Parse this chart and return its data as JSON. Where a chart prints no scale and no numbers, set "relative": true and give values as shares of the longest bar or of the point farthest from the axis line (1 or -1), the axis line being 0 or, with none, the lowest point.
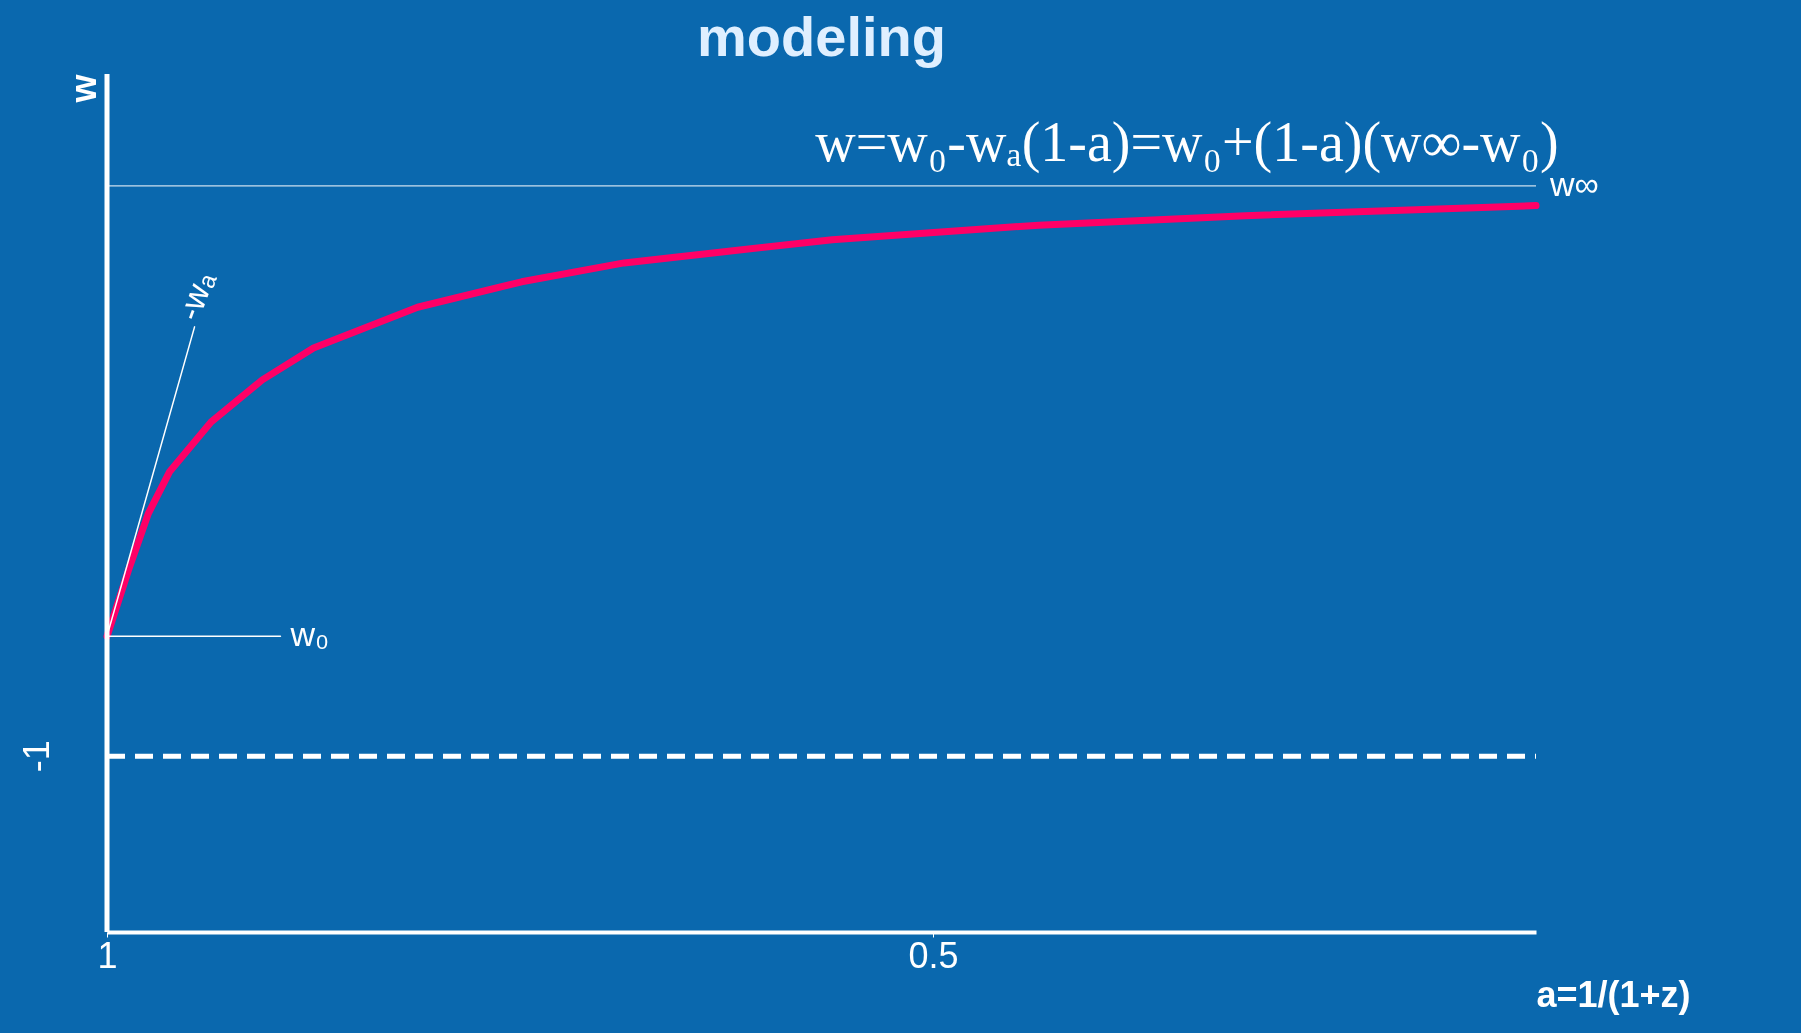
{
  "chart_data": {
    "type": "line",
    "title": "modeling",
    "xlabel": "a=1/(1+z)",
    "ylabel": "w",
    "relative": true,
    "xlim": [
      1,
      0.135
    ],
    "xticks": [
      1,
      0.5
    ],
    "series": [
      {
        "color": "#ff0066",
        "x": [
          1,
          0.987,
          0.975,
          0.962,
          0.937,
          0.906,
          0.875,
          0.812,
          0.749,
          0.687,
          0.561,
          0.436,
          0.311,
          0.135
        ],
        "values": [
          0.407,
          0.498,
          0.576,
          0.634,
          0.702,
          0.76,
          0.804,
          0.86,
          0.895,
          0.921,
          0.953,
          0.973,
          0.986,
          1
        ]
      },
      {
        "name": "-wₐ",
        "color": "#ffffff",
        "x": [
          1,
          0.947
        ],
        "values": [
          0.407,
          0.833
        ]
      },
      {
        "name": "w₀",
        "color": "#ffffff",
        "x": [
          1,
          0.895
        ],
        "values": [
          0.407,
          0.407
        ]
      }
    ],
    "ref_lines": [
      {
        "axis": "x",
        "value": 1,
        "color": "#ffffff",
        "line_style": "solid"
      },
      {
        "axis": "y",
        "value": 1.027,
        "label": "w∞",
        "color": "#ffffff",
        "line_style": "solid"
      },
      {
        "axis": "y",
        "value": 0.242,
        "color": "#ffffff",
        "line_style": "dashed"
      }
    ],
    "annotations": [
      "w=w₀-wₐ(1-a)=w₀+(1-a)(w∞-w₀)",
      "-1"
    ]
  }
}
